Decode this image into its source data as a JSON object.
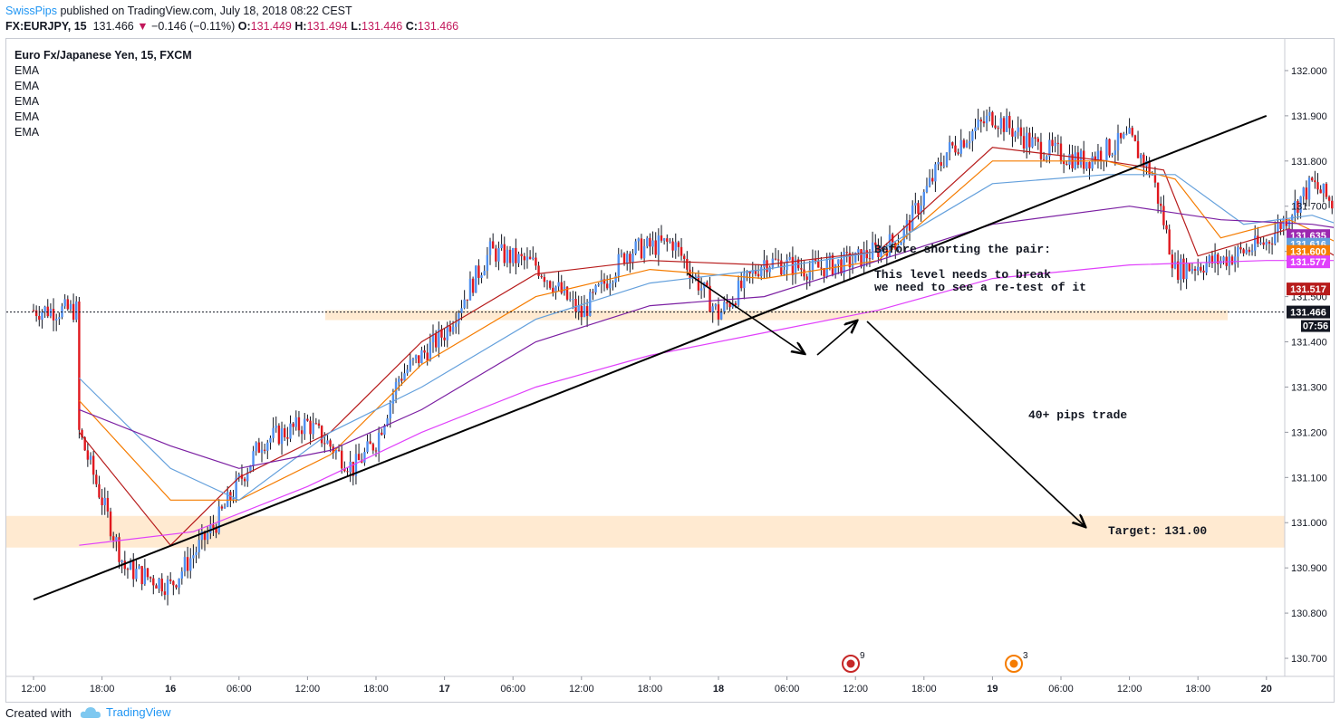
{
  "header": {
    "author": "SwissPips",
    "published": "published on TradingView.com, July 18, 2018 08:22 CEST",
    "symbol": "FX:EURJPY, 15",
    "last": "131.466",
    "change_arrow": "▼",
    "change": "−0.146 (−0.11%)",
    "open_label": "O:",
    "open": "131.449",
    "high_label": "H:",
    "high": "131.494",
    "low_label": "L:",
    "low": "131.446",
    "close_label": "C:",
    "close": "131.466"
  },
  "legend": {
    "title": "Euro Fx/Japanese Yen, 15, FXCM",
    "indicators": [
      "EMA",
      "EMA",
      "EMA",
      "EMA",
      "EMA"
    ]
  },
  "footer": {
    "created_with": "Created with",
    "brand": "TradingView",
    "brand_icon": "cloud-icon"
  },
  "chart_data": {
    "type": "candlestick",
    "title": "Euro Fx/Japanese Yen, 15, FXCM",
    "ylim": [
      130.66,
      132.07
    ],
    "y_ticks": [
      "132.000",
      "131.900",
      "131.800",
      "131.700",
      "131.600",
      "131.500",
      "131.400",
      "131.300",
      "131.200",
      "131.100",
      "131.000",
      "130.900",
      "130.800",
      "130.700"
    ],
    "x_ticks": [
      "12:00",
      "18:00",
      "16",
      "06:00",
      "12:00",
      "18:00",
      "17",
      "06:00",
      "12:00",
      "18:00",
      "18",
      "06:00",
      "12:00",
      "18:00",
      "19",
      "06:00",
      "12:00",
      "18:00",
      "20"
    ],
    "bold_x_ticks": [
      "16",
      "17",
      "18",
      "19",
      "20"
    ],
    "price_path": [
      [
        0,
        131.2
      ],
      [
        4,
        130.9
      ],
      [
        8,
        130.86
      ],
      [
        12,
        131.0
      ],
      [
        16,
        131.18
      ],
      [
        20,
        131.22
      ],
      [
        24,
        131.12
      ],
      [
        26,
        131.18
      ],
      [
        28,
        131.32
      ],
      [
        32,
        131.42
      ],
      [
        36,
        131.6
      ],
      [
        40,
        131.57
      ],
      [
        44,
        131.46
      ],
      [
        48,
        131.6
      ],
      [
        52,
        131.62
      ],
      [
        56,
        131.46
      ],
      [
        60,
        131.58
      ],
      [
        64,
        131.56
      ],
      [
        68,
        131.58
      ],
      [
        72,
        131.63
      ],
      [
        76,
        131.82
      ],
      [
        80,
        131.9
      ],
      [
        84,
        131.83
      ],
      [
        88,
        131.8
      ],
      [
        92,
        131.85
      ],
      [
        94,
        131.77
      ],
      [
        96,
        131.56
      ],
      [
        100,
        131.58
      ],
      [
        104,
        131.62
      ],
      [
        108,
        131.75
      ],
      [
        110,
        131.7
      ],
      [
        112,
        131.64
      ],
      [
        114,
        131.55
      ],
      [
        116,
        131.47
      ]
    ],
    "series": [
      {
        "name": "EMA",
        "color": "#b71c1c",
        "values": [
          [
            0,
            131.2
          ],
          [
            8,
            130.95
          ],
          [
            14,
            131.1
          ],
          [
            22,
            131.2
          ],
          [
            30,
            131.4
          ],
          [
            40,
            131.55
          ],
          [
            50,
            131.58
          ],
          [
            60,
            131.57
          ],
          [
            70,
            131.6
          ],
          [
            80,
            131.83
          ],
          [
            90,
            131.8
          ],
          [
            95,
            131.78
          ],
          [
            98,
            131.59
          ],
          [
            106,
            131.65
          ],
          [
            116,
            131.5
          ]
        ]
      },
      {
        "name": "EMA",
        "color": "#f57c00",
        "values": [
          [
            0,
            131.27
          ],
          [
            8,
            131.05
          ],
          [
            14,
            131.05
          ],
          [
            22,
            131.15
          ],
          [
            30,
            131.35
          ],
          [
            40,
            131.5
          ],
          [
            50,
            131.56
          ],
          [
            60,
            131.54
          ],
          [
            70,
            131.58
          ],
          [
            80,
            131.8
          ],
          [
            90,
            131.8
          ],
          [
            96,
            131.76
          ],
          [
            100,
            131.63
          ],
          [
            106,
            131.67
          ],
          [
            116,
            131.55
          ]
        ]
      },
      {
        "name": "EMA",
        "color": "#64a0dc",
        "values": [
          [
            0,
            131.32
          ],
          [
            8,
            131.12
          ],
          [
            14,
            131.05
          ],
          [
            22,
            131.2
          ],
          [
            30,
            131.3
          ],
          [
            40,
            131.45
          ],
          [
            50,
            131.53
          ],
          [
            60,
            131.56
          ],
          [
            70,
            131.6
          ],
          [
            80,
            131.75
          ],
          [
            90,
            131.77
          ],
          [
            96,
            131.77
          ],
          [
            102,
            131.66
          ],
          [
            108,
            131.68
          ],
          [
            116,
            131.61
          ]
        ]
      },
      {
        "name": "EMA",
        "color": "#7b1fa2",
        "values": [
          [
            0,
            131.25
          ],
          [
            8,
            131.17
          ],
          [
            14,
            131.12
          ],
          [
            22,
            131.16
          ],
          [
            30,
            131.25
          ],
          [
            40,
            131.4
          ],
          [
            50,
            131.48
          ],
          [
            60,
            131.5
          ],
          [
            70,
            131.58
          ],
          [
            80,
            131.66
          ],
          [
            92,
            131.7
          ],
          [
            100,
            131.67
          ],
          [
            108,
            131.66
          ],
          [
            116,
            131.63
          ]
        ]
      },
      {
        "name": "EMA",
        "color": "#e040fb",
        "values": [
          [
            0,
            130.95
          ],
          [
            10,
            130.98
          ],
          [
            20,
            131.08
          ],
          [
            30,
            131.2
          ],
          [
            40,
            131.3
          ],
          [
            50,
            131.37
          ],
          [
            60,
            131.42
          ],
          [
            70,
            131.47
          ],
          [
            80,
            131.54
          ],
          [
            92,
            131.57
          ],
          [
            104,
            131.58
          ],
          [
            116,
            131.58
          ]
        ]
      }
    ],
    "price_labels": [
      {
        "value": "131.635",
        "color": "#9c27b0"
      },
      {
        "value": "131.616",
        "color": "#64a0dc"
      },
      {
        "value": "131.600",
        "color": "#f57c00"
      },
      {
        "value": "131.577",
        "color": "#e040fb"
      },
      {
        "value": "131.517",
        "color": "#b71c1c"
      },
      {
        "value": "131.466",
        "color": "#131722"
      }
    ],
    "countdown": "07:56",
    "zones": [
      {
        "from": 131.448,
        "to": 131.47
      },
      {
        "from": 130.945,
        "to": 131.015
      }
    ],
    "trendline": {
      "from": [
        -4,
        130.83
      ],
      "to": [
        104,
        131.9
      ]
    },
    "current_price_line": 131.466,
    "annotations": [
      "Before shorting the pair:",
      "This level needs to break",
      "we need to see a re-test of it",
      "40+ pips trade",
      "Target: 131.00"
    ],
    "event_markers": [
      {
        "count": "9",
        "color": "#c62828"
      },
      {
        "count": "3",
        "color": "#f57c00"
      }
    ]
  }
}
